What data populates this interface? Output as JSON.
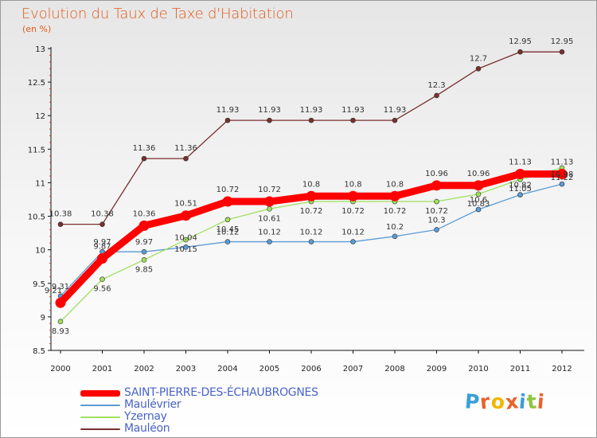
{
  "title": "Evolution du Taux de Taxe d'Habitation",
  "unit": "(en %)",
  "logo": "Proxiti",
  "chart_data": {
    "type": "line",
    "title": "Evolution du Taux de Taxe d'Habitation",
    "ylabel": "(en %)",
    "x": [
      "2000",
      "2001",
      "2002",
      "2003",
      "2004",
      "2005",
      "2006",
      "2007",
      "2008",
      "2009",
      "2010",
      "2011",
      "2012"
    ],
    "ylim": [
      8.5,
      13
    ],
    "yticks": [
      "8.5",
      "9",
      "9.5",
      "10",
      "10.5",
      "11",
      "11.5",
      "12",
      "12.5",
      "13"
    ],
    "grid": false,
    "legend": "bottom-left",
    "series": [
      {
        "name": "SAINT-PIERRE-DES-ÉCHAUBROGNES",
        "color": "#ff0000",
        "values": [
          9.21,
          9.87,
          10.36,
          10.51,
          10.72,
          10.72,
          10.8,
          10.8,
          10.8,
          10.96,
          10.96,
          11.13,
          11.13
        ],
        "labels": [
          "9.21",
          "9.87",
          "10.36",
          "10.51",
          "10.72",
          "10.72",
          "10.8",
          "10.8",
          "10.8",
          "10.96",
          "10.96",
          "11.13",
          "11.13"
        ]
      },
      {
        "name": "Maulévrier",
        "color": "#5b9bd5",
        "values": [
          9.31,
          9.97,
          9.97,
          10.04,
          10.12,
          10.12,
          10.12,
          10.12,
          10.2,
          10.3,
          10.6,
          10.82,
          10.98
        ],
        "labels": [
          "9.31",
          "9.97",
          "9.97",
          "10.04",
          "10.12",
          "10.12",
          "10.12",
          "10.12",
          "10.2",
          "10.3",
          "10.6",
          "10.82",
          "10.98"
        ]
      },
      {
        "name": "Yzernay",
        "color": "#9fe05f",
        "values": [
          8.93,
          9.56,
          9.85,
          10.15,
          10.45,
          10.61,
          10.72,
          10.72,
          10.72,
          10.72,
          10.83,
          11.05,
          11.22
        ],
        "labels": [
          "8.93",
          "9.56",
          "9.85",
          "10.15",
          "10.45",
          "10.61",
          "10.72",
          "10.72",
          "10.72",
          "10.72",
          "10.83",
          "11.05",
          "11.22"
        ]
      },
      {
        "name": "Mauléon",
        "color": "#7a2f2f",
        "values": [
          10.38,
          10.38,
          11.36,
          11.36,
          11.93,
          11.93,
          11.93,
          11.93,
          11.93,
          12.3,
          12.7,
          12.95,
          12.95
        ],
        "labels": [
          "10.38",
          "10.38",
          "11.36",
          "11.36",
          "11.93",
          "11.93",
          "11.93",
          "11.93",
          "11.93",
          "12.3",
          "12.7",
          "12.95",
          "12.95"
        ]
      }
    ]
  },
  "logo_colors": [
    "#3aa0d8",
    "#e8632a",
    "#f4b400",
    "#e8632a",
    "#3aa0d8",
    "#8dc63f",
    "#e8632a"
  ]
}
